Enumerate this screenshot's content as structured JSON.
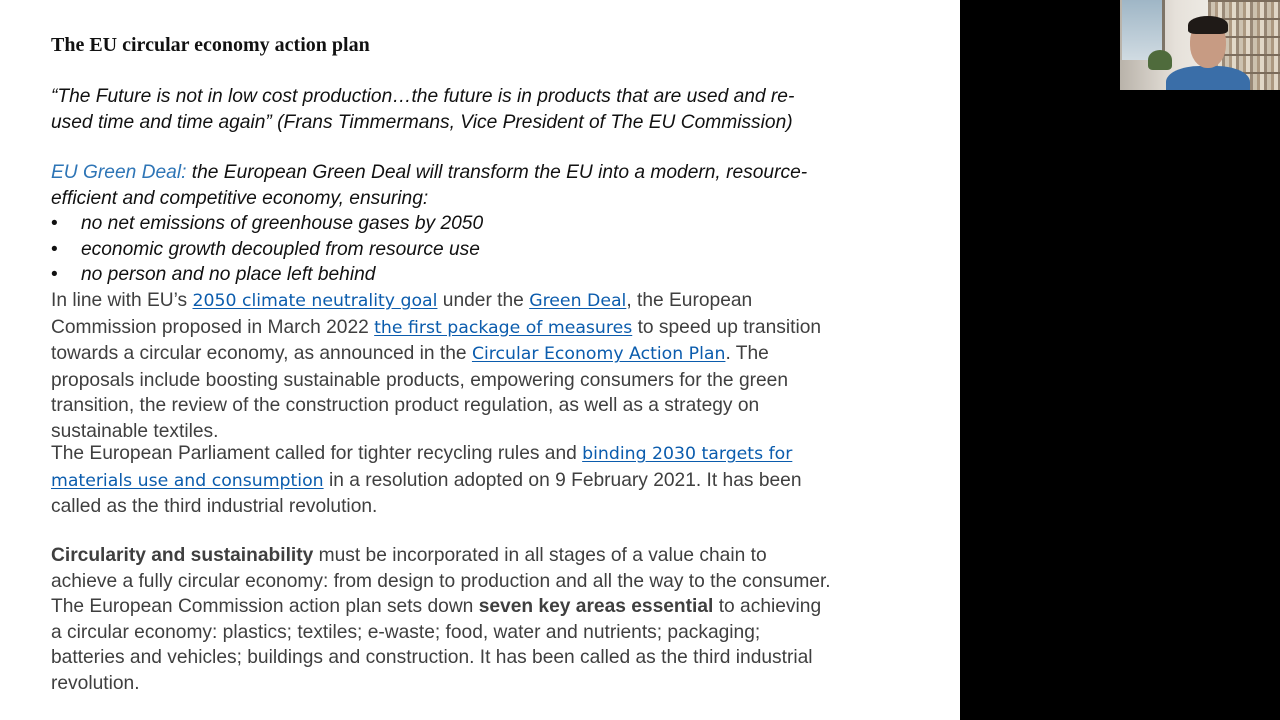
{
  "slide": {
    "title": "The EU circular economy action plan",
    "quote": {
      "line1": "“The Future is not in low cost production…the future is in products that are used and re-",
      "line2": "used time and time again”  (Frans Timmermans, Vice President of The EU Commission)"
    },
    "green_deal": {
      "label": "EU Green Deal:",
      "text_line1": " the European Green Deal will transform the EU into a modern, resource-",
      "text_line2": "efficient and competitive economy, ensuring:",
      "bullets": [
        "no net emissions of greenhouse gases by 2050",
        "economic growth decoupled from resource use",
        "no person and no place left behind"
      ]
    },
    "para1": {
      "t1": "In line with EU’s ",
      "link1": "2050 climate neutrality goal",
      "t2": " under the ",
      "link2": "Green Deal",
      "t3": ", the European",
      "t4": "Commission proposed in March 2022 ",
      "link3": "the first package of measures",
      "t5": " to speed up transition",
      "t6": "towards a circular economy, as announced in the ",
      "link4": "Circular Economy Action Plan",
      "t7": ". The",
      "t8": "proposals include boosting sustainable products, empowering consumers for the green",
      "t9": "transition, the review of the construction product regulation, as well as a strategy on",
      "t10": "sustainable textiles."
    },
    "para2": {
      "t1": "The European Parliament called for tighter recycling rules and ",
      "link1a": "binding 2030 targets for",
      "link1b": "materials use and consumption",
      "t2": " in a resolution adopted on 9 February 2021. It has been",
      "t3": "called as the third industrial revolution."
    },
    "para3": {
      "bold1": "Circularity and sustainability",
      "t1": " must be incorporated in all stages of a value chain to",
      "t2": "achieve a fully circular economy: from design to production and all the way to the consumer.",
      "t3": "The European Commission action plan sets down ",
      "bold2": "seven key areas essential",
      "t4": " to achieving",
      "t5": "a circular economy: plastics; textiles; e-waste; food, water and nutrients; packaging;",
      "t6": "batteries and vehicles; buildings and construction. It has been called as the third industrial",
      "t7": "revolution."
    },
    "bullet_glyph": "•"
  },
  "colors": {
    "accent": "#2e75b6",
    "link": "#0b5cad",
    "body_text": "#3f3f3f"
  },
  "icons": {
    "webcam": "presenter-video"
  }
}
